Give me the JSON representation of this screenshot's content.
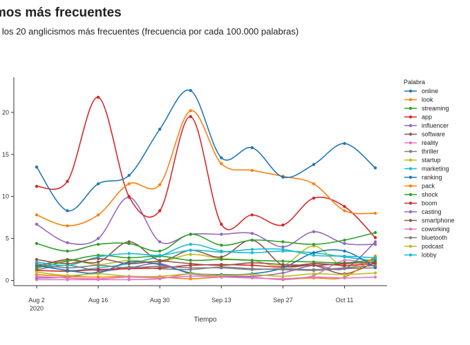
{
  "page": {
    "title": "mos más frecuentes",
    "subtitle": "e los 20 anglicismos más frecuentes (frecuencia por cada 100.000 palabras)"
  },
  "chart_data": {
    "type": "line",
    "title": "mos más frecuentes",
    "subtitle": "e los 20 anglicismos más frecuentes (frecuencia por cada 100.000 palabras)",
    "xlabel": "Tiempo",
    "ylabel": "",
    "x": [
      "2020-08-02",
      "2020-08-09",
      "2020-08-16",
      "2020-08-23",
      "2020-08-30",
      "2020-09-06",
      "2020-09-13",
      "2020-09-20",
      "2020-09-27",
      "2020-10-04",
      "2020-10-11",
      "2020-10-18"
    ],
    "x_ticks": [
      {
        "date": "2020-08-02",
        "label": "Aug 2",
        "sublabel": "2020"
      },
      {
        "date": "2020-08-16",
        "label": "Aug 16",
        "sublabel": ""
      },
      {
        "date": "2020-08-30",
        "label": "Aug 30",
        "sublabel": ""
      },
      {
        "date": "2020-09-13",
        "label": "Sep 13",
        "sublabel": ""
      },
      {
        "date": "2020-09-27",
        "label": "Sep 27",
        "sublabel": ""
      },
      {
        "date": "2020-10-11",
        "label": "Oct 11",
        "sublabel": ""
      }
    ],
    "y_ticks": [
      0,
      5,
      10,
      15,
      20
    ],
    "ylim": [
      0,
      23
    ],
    "legend_title": "Palabra",
    "legend_position": "right",
    "grid": false,
    "series": [
      {
        "name": "online",
        "color": "#1f77b4",
        "values": [
          13.5,
          8.3,
          11.5,
          12.5,
          18.0,
          22.6,
          14.6,
          15.8,
          12.3,
          13.8,
          16.3,
          13.4
        ]
      },
      {
        "name": "look",
        "color": "#ff7f0e",
        "values": [
          7.8,
          6.5,
          7.8,
          11.5,
          11.4,
          20.2,
          13.9,
          13.1,
          12.4,
          11.5,
          8.3,
          8.0
        ]
      },
      {
        "name": "streaming",
        "color": "#2ca02c",
        "values": [
          4.4,
          3.5,
          4.3,
          4.4,
          3.5,
          5.5,
          4.2,
          4.8,
          4.6,
          4.3,
          4.8,
          5.7
        ]
      },
      {
        "name": "app",
        "color": "#d62728",
        "values": [
          11.2,
          11.8,
          21.8,
          10.0,
          8.3,
          19.5,
          6.7,
          7.8,
          6.6,
          9.8,
          8.8,
          5.1
        ]
      },
      {
        "name": "influencer",
        "color": "#9467bd",
        "values": [
          6.7,
          4.5,
          5.0,
          9.9,
          4.6,
          5.5,
          5.5,
          5.6,
          4.0,
          5.8,
          4.4,
          4.3
        ]
      },
      {
        "name": "software",
        "color": "#8c564b",
        "values": [
          2.5,
          2.0,
          2.6,
          2.0,
          2.3,
          2.0,
          1.8,
          2.1,
          1.9,
          1.8,
          2.0,
          2.2
        ]
      },
      {
        "name": "reality",
        "color": "#e377c2",
        "values": [
          0.5,
          0.3,
          0.2,
          0.4,
          0.3,
          0.5,
          0.4,
          0.3,
          0.2,
          0.4,
          0.3,
          0.4
        ]
      },
      {
        "name": "thriller",
        "color": "#7f7f7f",
        "values": [
          2.0,
          1.5,
          1.8,
          1.5,
          1.7,
          1.5,
          1.5,
          1.3,
          1.4,
          1.3,
          1.5,
          1.8
        ]
      },
      {
        "name": "startup",
        "color": "#bcbd22",
        "values": [
          1.0,
          0.6,
          0.8,
          0.5,
          0.5,
          0.8,
          0.6,
          0.7,
          0.5,
          0.8,
          0.7,
          0.9
        ]
      },
      {
        "name": "marketing",
        "color": "#17becf",
        "values": [
          2.2,
          1.8,
          2.8,
          3.2,
          3.0,
          3.6,
          3.4,
          3.7,
          3.7,
          3.0,
          2.9,
          2.7
        ]
      },
      {
        "name": "ranking",
        "color": "#1f77b4",
        "values": [
          1.8,
          1.2,
          0.9,
          2.2,
          1.9,
          0.9,
          0.7,
          0.8,
          1.5,
          3.3,
          3.5,
          1.6
        ]
      },
      {
        "name": "pack",
        "color": "#ff7f0e",
        "values": [
          0.7,
          0.5,
          0.4,
          0.5,
          0.4,
          0.2,
          0.4,
          0.3,
          0.2,
          0.3,
          0.4,
          2.9
        ]
      },
      {
        "name": "shock",
        "color": "#2ca02c",
        "values": [
          1.5,
          2.3,
          3.0,
          2.7,
          2.9,
          2.4,
          2.5,
          2.4,
          2.3,
          2.2,
          2.1,
          2.5
        ]
      },
      {
        "name": "boom",
        "color": "#d62728",
        "values": [
          1.2,
          1.1,
          1.3,
          1.4,
          1.5,
          1.8,
          1.9,
          1.8,
          1.6,
          2.0,
          1.8,
          2.0
        ]
      },
      {
        "name": "casting",
        "color": "#9467bd",
        "values": [
          0.3,
          0.4,
          1.0,
          1.5,
          2.0,
          0.8,
          0.6,
          0.5,
          0.9,
          1.8,
          1.4,
          4.6
        ]
      },
      {
        "name": "smartphone",
        "color": "#8c564b",
        "values": [
          1.7,
          2.5,
          2.2,
          4.6,
          2.4,
          3.6,
          2.8,
          4.8,
          1.8,
          1.8,
          0.8,
          2.2
        ]
      },
      {
        "name": "coworking",
        "color": "#e377c2",
        "values": [
          0.1,
          0.1,
          0.1,
          0.1,
          0.2,
          0.8,
          0.5,
          0.4,
          0.1,
          0.6,
          2.4,
          1.7
        ]
      },
      {
        "name": "bluetooth",
        "color": "#7f7f7f",
        "values": [
          1.3,
          1.8,
          1.2,
          1.6,
          1.4,
          1.3,
          1.6,
          1.4,
          1.3,
          1.2,
          1.4,
          1.5
        ]
      },
      {
        "name": "podcast",
        "color": "#bcbd22",
        "values": [
          1.6,
          2.4,
          1.9,
          2.4,
          2.2,
          3.1,
          2.6,
          2.4,
          1.8,
          4.1,
          1.6,
          2.7
        ]
      },
      {
        "name": "lobby",
        "color": "#17becf",
        "values": [
          2.0,
          1.2,
          1.5,
          2.0,
          2.9,
          4.3,
          3.5,
          3.3,
          3.5,
          3.3,
          2.8,
          2.3
        ]
      }
    ]
  }
}
